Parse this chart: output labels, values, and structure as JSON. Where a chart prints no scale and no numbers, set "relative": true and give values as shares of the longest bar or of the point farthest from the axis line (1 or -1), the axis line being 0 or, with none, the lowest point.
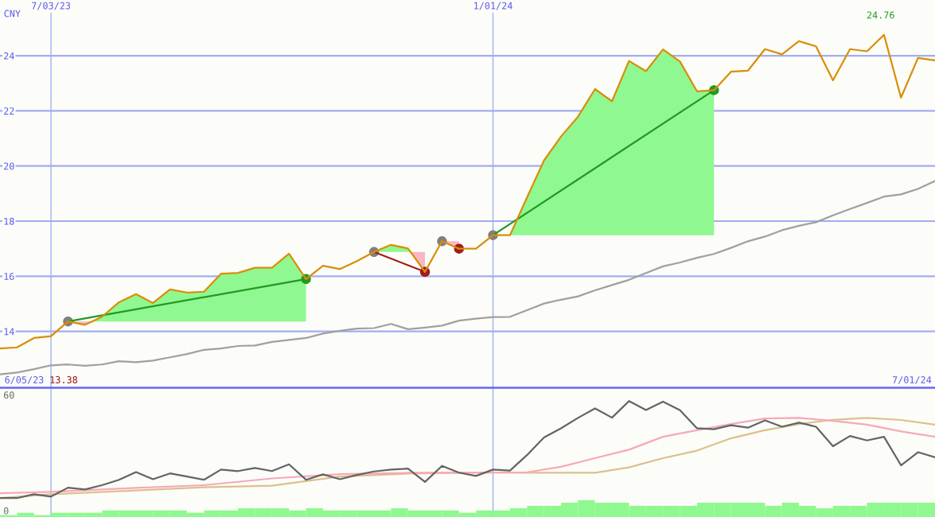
{
  "chart_data": [
    {
      "type": "line",
      "ylabel": "CNY",
      "x": [
        "2023-06-12",
        "2023-06-19",
        "2023-06-26",
        "2023-07-03",
        "2023-07-10",
        "2023-07-17",
        "2023-07-24",
        "2023-07-31",
        "2023-08-07",
        "2023-08-14",
        "2023-08-21",
        "2023-08-28",
        "2023-09-04",
        "2023-09-11",
        "2023-09-18",
        "2023-09-25",
        "2023-10-02",
        "2023-10-09",
        "2023-10-16",
        "2023-10-23",
        "2023-10-30",
        "2023-11-06",
        "2023-11-13",
        "2023-11-20",
        "2023-11-27",
        "2023-12-04",
        "2023-12-11",
        "2023-12-18",
        "2023-12-25",
        "2024-01-01",
        "2024-01-08",
        "2024-01-15",
        "2024-01-22",
        "2024-01-29",
        "2024-02-05",
        "2024-02-12",
        "2024-02-19",
        "2024-02-26",
        "2024-03-04",
        "2024-03-11",
        "2024-03-18",
        "2024-03-25",
        "2024-04-01",
        "2024-04-08",
        "2024-04-15",
        "2024-04-22",
        "2024-04-29",
        "2024-05-06",
        "2024-05-13",
        "2024-05-20",
        "2024-05-27",
        "2024-06-03",
        "2024-06-10",
        "2024-06-17",
        "2024-06-24",
        "2024-07-01"
      ],
      "xlim": [
        "2023-06-12",
        "2024-07-01"
      ],
      "xticks": [
        {
          "value": "2023-07-03",
          "label": "7/03/23"
        },
        {
          "value": "2024-01-01",
          "label": "1/01/24"
        }
      ],
      "ylim": [
        11.97,
        25.56
      ],
      "yticks": [
        14,
        16,
        18,
        20,
        22,
        24
      ],
      "grid": true,
      "series": [
        {
          "type": "scatter",
          "color": "#808080",
          "marker": "circle",
          "x": [
            "2023-07-10",
            "2023-11-13",
            "2023-12-11",
            "2024-01-01"
          ],
          "values": [
            14.36,
            16.88,
            17.27,
            17.49
          ]
        },
        {
          "type": "scatter",
          "color": "#229922",
          "marker": "circle",
          "x": [
            "2023-10-16",
            "2024-04-01"
          ],
          "values": [
            15.9,
            22.75
          ]
        },
        {
          "type": "scatter",
          "color": "#a01c1c",
          "marker": "circle",
          "x": [
            "2023-12-04",
            "2023-12-18"
          ],
          "values": [
            16.16,
            17.0
          ]
        },
        {
          "type": "line",
          "color": "#229922",
          "x": [
            "2023-07-10",
            "2023-10-16"
          ],
          "values": [
            14.36,
            15.9
          ]
        },
        {
          "type": "line",
          "color": "#a01c1c",
          "x": [
            "2023-11-13",
            "2023-12-04"
          ],
          "values": [
            16.88,
            16.16
          ]
        },
        {
          "type": "line",
          "color": "#229922",
          "x": [
            "2024-01-01",
            "2024-04-01"
          ],
          "values": [
            17.49,
            22.75
          ]
        },
        {
          "color": "#d98e08",
          "x": [
            "2023-06-12",
            "2023-06-19",
            "2023-06-26",
            "2023-07-03",
            "2023-07-10"
          ],
          "values": [
            13.38,
            13.42,
            13.76,
            13.83,
            14.36
          ]
        },
        {
          "color": "#d98e08",
          "x": [
            "2023-07-10",
            "2023-07-17",
            "2023-07-19T22:00"
          ],
          "values": [
            14.36,
            14.24,
            14.36
          ],
          "lower": [
            14.36,
            14.24,
            14.36
          ],
          "upper": [
            14.36,
            14.36,
            14.36
          ]
        },
        {
          "color": "#d98e08",
          "x": [
            "2023-07-19T22:00",
            "2023-07-24",
            "2023-07-31",
            "2023-08-07",
            "2023-08-14",
            "2023-08-21",
            "2023-08-28",
            "2023-09-04",
            "2023-09-11",
            "2023-09-18",
            "2023-09-25",
            "2023-10-02",
            "2023-10-09",
            "2023-10-16"
          ],
          "values": [
            14.36,
            14.53,
            15.06,
            15.35,
            15.03,
            15.52,
            15.41,
            15.44,
            16.09,
            16.12,
            16.31,
            16.31,
            16.82,
            15.9
          ],
          "lower": [
            14.36,
            14.36,
            14.36,
            14.36,
            14.36,
            14.36,
            14.36,
            14.36,
            14.36,
            14.36,
            14.36,
            14.36,
            14.36,
            14.36
          ],
          "upper": [
            14.36,
            14.53,
            15.06,
            15.35,
            15.03,
            15.52,
            15.41,
            15.44,
            16.09,
            16.12,
            16.31,
            16.31,
            16.82,
            15.9
          ]
        },
        {
          "color": "#d98e08",
          "x": [
            "2023-10-16",
            "2023-10-23",
            "2023-10-30",
            "2023-11-06",
            "2023-11-13"
          ],
          "values": [
            15.9,
            16.38,
            16.26,
            16.55,
            16.88
          ]
        },
        {
          "color": "#d98e08",
          "x": [
            "2023-11-13",
            "2023-11-20",
            "2023-11-27",
            "2023-11-28T02:00"
          ],
          "values": [
            16.88,
            17.14,
            17.01,
            16.88
          ],
          "lower": [
            16.88,
            16.88,
            16.88,
            16.88
          ],
          "upper": [
            16.88,
            17.14,
            17.01,
            16.88
          ]
        },
        {
          "color": "#d98e08",
          "x": [
            "2023-11-28T02:00",
            "2023-12-04"
          ],
          "values": [
            16.88,
            16.16
          ],
          "lower": [
            16.88,
            16.16
          ],
          "upper": [
            16.88,
            16.88
          ]
        },
        {
          "color": "#d98e08",
          "x": [
            "2023-12-04",
            "2023-12-11"
          ],
          "values": [
            16.16,
            17.27
          ]
        },
        {
          "color": "#d98e08",
          "x": [
            "2023-12-11",
            "2023-12-18"
          ],
          "values": [
            17.27,
            17.0
          ],
          "lower": [
            17.27,
            17.0
          ],
          "upper": [
            17.27,
            17.27
          ]
        },
        {
          "color": "#d98e08",
          "x": [
            "2023-12-18",
            "2023-12-25",
            "2024-01-01"
          ],
          "values": [
            17.0,
            17.0,
            17.49
          ]
        },
        {
          "color": "#d98e08",
          "x": [
            "2024-01-01",
            "2024-01-08",
            "2024-01-15",
            "2024-01-22",
            "2024-01-29",
            "2024-02-05",
            "2024-02-12",
            "2024-02-19",
            "2024-02-26",
            "2024-03-04",
            "2024-03-11",
            "2024-03-18",
            "2024-03-25",
            "2024-04-01"
          ],
          "values": [
            17.49,
            17.49,
            18.86,
            20.2,
            21.07,
            21.79,
            22.79,
            22.35,
            23.81,
            23.44,
            24.23,
            23.79,
            22.71,
            22.75
          ],
          "lower": [
            17.49,
            17.49,
            17.49,
            17.49,
            17.49,
            17.49,
            17.49,
            17.49,
            17.49,
            17.49,
            17.49,
            17.49,
            17.49,
            17.49
          ],
          "upper": [
            17.49,
            17.49,
            18.86,
            20.2,
            21.07,
            21.79,
            22.79,
            22.35,
            23.81,
            23.44,
            24.23,
            23.79,
            22.71,
            22.75
          ]
        },
        {
          "color": "#d98e08",
          "x": [
            "2024-04-01",
            "2024-04-08",
            "2024-04-15",
            "2024-04-22",
            "2024-04-29",
            "2024-05-06",
            "2024-05-13",
            "2024-05-20",
            "2024-05-27",
            "2024-06-03",
            "2024-06-10",
            "2024-06-17",
            "2024-06-24",
            "2024-07-01"
          ],
          "values": [
            22.75,
            23.42,
            23.46,
            24.24,
            24.05,
            24.53,
            24.34,
            23.11,
            24.24,
            24.16,
            24.76,
            22.48,
            23.92,
            23.83
          ]
        },
        {
          "color": "#a0a0a0",
          "values": [
            12.44,
            12.51,
            12.63,
            12.77,
            12.8,
            12.75,
            12.8,
            12.92,
            12.88,
            12.94,
            13.06,
            13.18,
            13.33,
            13.38,
            13.47,
            13.49,
            13.62,
            13.69,
            13.76,
            13.92,
            14.02,
            14.1,
            14.12,
            14.27,
            14.08,
            14.14,
            14.21,
            14.39,
            14.46,
            14.52,
            14.53,
            14.77,
            15.01,
            15.15,
            15.27,
            15.49,
            15.68,
            15.87,
            16.12,
            16.36,
            16.5,
            16.67,
            16.81,
            17.03,
            17.27,
            17.44,
            17.67,
            17.83,
            17.96,
            18.21,
            18.44,
            18.66,
            18.89,
            18.97,
            19.17,
            19.46
          ]
        }
      ],
      "annotations": [
        "6/05/23",
        "13.38",
        "7/01/24",
        {
          "text": "24.76",
          "x": "2024-06-10",
          "y": 24.76
        }
      ]
    },
    {
      "type": "line",
      "x": [
        "2023-06-12",
        "2023-06-19",
        "2023-06-26",
        "2023-07-03",
        "2023-07-10",
        "2023-07-17",
        "2023-07-24",
        "2023-07-31",
        "2023-08-07",
        "2023-08-14",
        "2023-08-21",
        "2023-08-28",
        "2023-09-04",
        "2023-09-11",
        "2023-09-18",
        "2023-09-25",
        "2023-10-02",
        "2023-10-09",
        "2023-10-16",
        "2023-10-23",
        "2023-10-30",
        "2023-11-06",
        "2023-11-13",
        "2023-11-20",
        "2023-11-27",
        "2023-12-04",
        "2023-12-11",
        "2023-12-18",
        "2023-12-25",
        "2024-01-01",
        "2024-01-08",
        "2024-01-15",
        "2024-01-22",
        "2024-01-29",
        "2024-02-05",
        "2024-02-12",
        "2024-02-19",
        "2024-02-26",
        "2024-03-04",
        "2024-03-11",
        "2024-03-18",
        "2024-03-25",
        "2024-04-01",
        "2024-04-08",
        "2024-04-15",
        "2024-04-22",
        "2024-04-29",
        "2024-05-06",
        "2024-05-13",
        "2024-05-20",
        "2024-05-27",
        "2024-06-03",
        "2024-06-10",
        "2024-06-17",
        "2024-06-24",
        "2024-07-01"
      ],
      "xlim": [
        "2023-06-12",
        "2024-07-01"
      ],
      "tick_labels": "y",
      "ylim": [
        -3.3,
        63.5
      ],
      "yticks": [
        0,
        60
      ],
      "ref_lines": [
        {
          "axis": "x",
          "value": "2023-07-03",
          "color": "#a3acf2"
        },
        {
          "axis": "x",
          "value": "2024-01-01",
          "color": "#a3acf2"
        }
      ],
      "series": [
        {
          "color": "#dcc08e",
          "x": [
            "2023-06-12",
            "2023-07-03",
            "2023-08-07",
            "2023-09-04",
            "2023-10-02",
            "2023-10-30",
            "2023-11-27",
            "2023-12-25",
            "2024-01-15",
            "2024-02-12",
            "2024-02-26",
            "2024-03-11",
            "2024-03-25",
            "2024-04-08",
            "2024-04-22",
            "2024-05-06",
            "2024-05-20",
            "2024-06-03",
            "2024-06-17",
            "2024-07-01"
          ],
          "values": [
            6.5,
            8.5,
            10.5,
            12.1,
            12.9,
            17.7,
            19.2,
            19.7,
            19.6,
            19.6,
            22.4,
            27.2,
            31.1,
            37.5,
            41.7,
            44.9,
            47.1,
            48.1,
            47.0,
            44.6
          ]
        },
        {
          "color": "#f8a8b8",
          "x": [
            "2023-06-12",
            "2023-07-03",
            "2023-08-07",
            "2023-09-04",
            "2023-10-02",
            "2023-10-30",
            "2023-11-27",
            "2023-12-25",
            "2024-01-15",
            "2024-01-29",
            "2024-02-12",
            "2024-02-26",
            "2024-03-11",
            "2024-03-25",
            "2024-04-08",
            "2024-04-22",
            "2024-05-06",
            "2024-05-20",
            "2024-06-03",
            "2024-06-17",
            "2024-07-01"
          ],
          "values": [
            9.0,
            9.7,
            11.8,
            13.2,
            16.7,
            18.9,
            19.6,
            19.7,
            19.9,
            22.7,
            27.2,
            31.6,
            38.3,
            41.7,
            44.9,
            47.8,
            48.1,
            46.5,
            44.6,
            41.1,
            38.3
          ]
        },
        {
          "color": "#646464",
          "values": [
            6.5,
            6.5,
            8.5,
            7.3,
            11.9,
            11.0,
            13.2,
            16.0,
            20.0,
            16.3,
            19.3,
            17.7,
            16.0,
            21.3,
            20.5,
            22.1,
            20.5,
            24.0,
            16.0,
            18.8,
            16.3,
            18.5,
            20.3,
            21.3,
            21.8,
            14.9,
            23.2,
            19.7,
            18.0,
            21.3,
            20.8,
            28.8,
            37.9,
            42.7,
            48.1,
            53.0,
            48.2,
            56.8,
            52.2,
            56.5,
            52.1,
            42.7,
            42.2,
            44.3,
            43.0,
            46.8,
            43.5,
            45.6,
            43.5,
            33.4,
            38.7,
            36.4,
            38.3,
            23.5,
            30.3,
            27.7
          ]
        }
      ]
    },
    {
      "type": "bar",
      "relative": true,
      "tick_labels": false,
      "xlim": [
        "2023-06-12",
        "2024-07-01"
      ],
      "x": [
        "2023-06-15T12:00",
        "2023-06-22T12:00",
        "2023-06-29T12:00",
        "2023-07-06T12:00",
        "2023-07-13T12:00",
        "2023-07-20T12:00",
        "2023-07-27T12:00",
        "2023-08-03T12:00",
        "2023-08-10T12:00",
        "2023-08-17T12:00",
        "2023-08-24T12:00",
        "2023-08-31T12:00",
        "2023-09-07T12:00",
        "2023-09-14T12:00",
        "2023-09-21T12:00",
        "2023-09-28T12:00",
        "2023-10-05T12:00",
        "2023-10-12T12:00",
        "2023-10-19T12:00",
        "2023-10-26T12:00",
        "2023-11-02T12:00",
        "2023-11-09T12:00",
        "2023-11-16T12:00",
        "2023-11-23T12:00",
        "2023-11-30T12:00",
        "2023-12-07T12:00",
        "2023-12-14T12:00",
        "2023-12-21T12:00",
        "2023-12-28T12:00",
        "2024-01-04T12:00",
        "2024-01-11T12:00",
        "2024-01-18T12:00",
        "2024-01-25T12:00",
        "2024-02-01T12:00",
        "2024-02-08T12:00",
        "2024-02-15T12:00",
        "2024-02-22T12:00",
        "2024-02-29T12:00",
        "2024-03-07T12:00",
        "2024-03-14T12:00",
        "2024-03-21T12:00",
        "2024-03-28T12:00",
        "2024-04-04T12:00",
        "2024-04-11T12:00",
        "2024-04-18T12:00",
        "2024-04-25T12:00",
        "2024-05-02T12:00",
        "2024-05-09T12:00",
        "2024-05-16T12:00",
        "2024-05-23T12:00",
        "2024-05-30T12:00",
        "2024-06-06T12:00",
        "2024-06-13T12:00",
        "2024-06-20T12:00",
        "2024-06-27T12:00"
      ],
      "color": "#90f890",
      "values": [
        0.11,
        0.25,
        0.11,
        0.25,
        0.25,
        0.25,
        0.39,
        0.39,
        0.39,
        0.39,
        0.39,
        0.25,
        0.39,
        0.39,
        0.52,
        0.52,
        0.52,
        0.39,
        0.52,
        0.39,
        0.39,
        0.39,
        0.39,
        0.52,
        0.39,
        0.39,
        0.39,
        0.25,
        0.39,
        0.39,
        0.52,
        0.66,
        0.66,
        0.85,
        1,
        0.85,
        0.85,
        0.66,
        0.66,
        0.66,
        0.66,
        0.85,
        0.85,
        0.85,
        0.85,
        0.66,
        0.85,
        0.66,
        0.52,
        0.66,
        0.66,
        0.85,
        0.85,
        0.85,
        0.85
      ]
    }
  ]
}
